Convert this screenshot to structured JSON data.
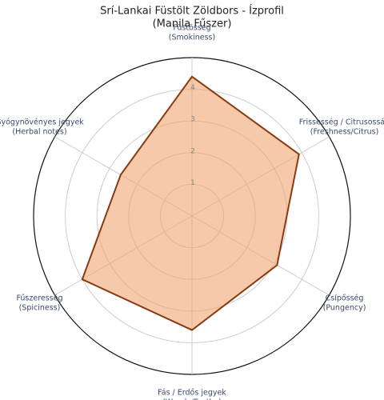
{
  "chart_data": {
    "type": "radar",
    "title": "Srí-Lankai Füstölt Zöldbors - Ízprofil",
    "subtitle": "(Manila Fűszer)",
    "categories": [
      [
        "Füstösség",
        "(Smokiness)"
      ],
      [
        "Frissesség / Citrusosság",
        "(Freshness/Citrus)"
      ],
      [
        "Csípősség",
        "(Pungency)"
      ],
      [
        "Fás / Erdős jegyek",
        "(Woody/Earthy)"
      ],
      [
        "Fűszeresség",
        "(Spiciness)"
      ],
      [
        "Gyógynövényes jegyek",
        "(Herbal notes)"
      ]
    ],
    "values": [
      4.4,
      3.9,
      3.1,
      3.6,
      4.0,
      2.6
    ],
    "color": "#8b3a10",
    "fill": "#eea56f",
    "ylim": [
      0,
      5
    ],
    "yticks": [
      1,
      2,
      3,
      4
    ],
    "grid": true
  }
}
